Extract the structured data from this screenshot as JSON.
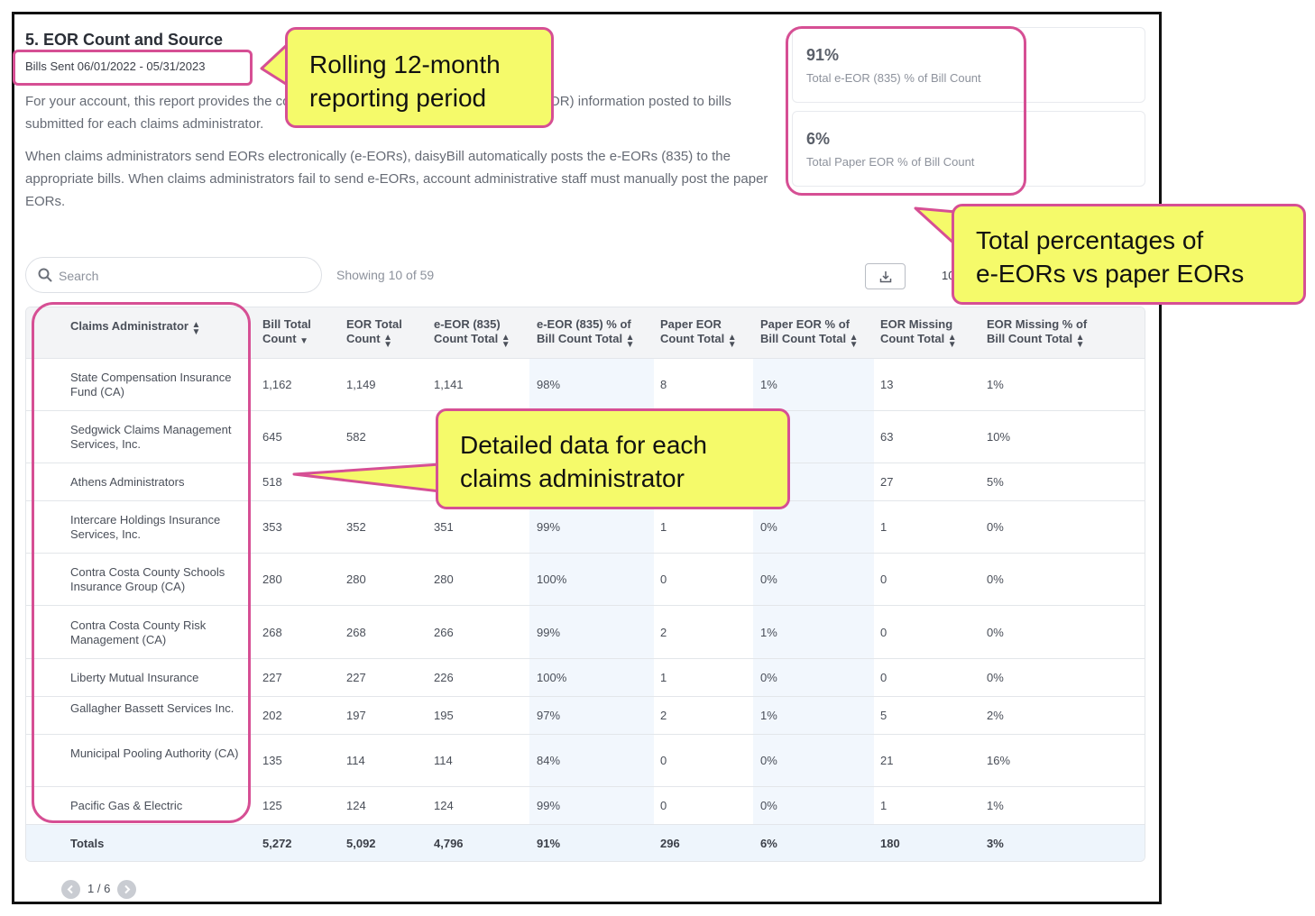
{
  "report": {
    "title": "5. EOR Count and Source",
    "subtitle": "Bills Sent 06/01/2022 - 05/31/2023",
    "para1": "For your account, this report provides the count and source of Explanation of Review (EOR) information posted to bills submitted for each claims administrator.",
    "para2": "When claims administrators send EORs electronically (e-EORs), daisyBill automatically posts the e-EORs (835) to the appropriate bills. When claims administrators fail to send e-EORs, account administrative staff must manually post the paper EORs."
  },
  "summary": {
    "eeor": {
      "pct": "91%",
      "label": "Total e-EOR (835) % of Bill Count"
    },
    "paper": {
      "pct": "6%",
      "label": "Total Paper EOR % of Bill Count"
    }
  },
  "toolbar": {
    "search_placeholder": "Search",
    "showing": "Showing 10 of 59",
    "download_icon": "download-icon",
    "per_page": "10"
  },
  "table": {
    "headers": [
      {
        "l1": "Claims Administrator",
        "l2": "",
        "sort": "both"
      },
      {
        "l1": "Bill Total",
        "l2": "Count",
        "sort": "down"
      },
      {
        "l1": "EOR Total",
        "l2": "Count",
        "sort": "both"
      },
      {
        "l1": "e-EOR (835)",
        "l2": "Count Total",
        "sort": "both"
      },
      {
        "l1": "e-EOR (835) % of",
        "l2": "Bill Count Total",
        "sort": "both"
      },
      {
        "l1": "Paper EOR",
        "l2": "Count Total",
        "sort": "both"
      },
      {
        "l1": "Paper EOR % of",
        "l2": "Bill Count Total",
        "sort": "both"
      },
      {
        "l1": "EOR Missing",
        "l2": "Count Total",
        "sort": "both"
      },
      {
        "l1": "EOR Missing % of",
        "l2": "Bill Count Total",
        "sort": "both"
      }
    ],
    "rows": [
      {
        "name": "State Compensation Insurance Fund (CA)",
        "vals": [
          "1,162",
          "1,149",
          "1,141",
          "98%",
          "8",
          "1%",
          "13",
          "1%"
        ]
      },
      {
        "name": "Sedgwick Claims Management Services, Inc.",
        "vals": [
          "645",
          "582",
          "",
          "",
          "",
          "",
          "63",
          "10%"
        ]
      },
      {
        "name": "Athens Administrators",
        "vals": [
          "518",
          "",
          "",
          "",
          "",
          "",
          "27",
          "5%"
        ]
      },
      {
        "name": "Intercare Holdings Insurance Services, Inc.",
        "vals": [
          "353",
          "352",
          "351",
          "99%",
          "1",
          "0%",
          "1",
          "0%"
        ]
      },
      {
        "name": "Contra Costa County Schools Insurance Group (CA)",
        "vals": [
          "280",
          "280",
          "280",
          "100%",
          "0",
          "0%",
          "0",
          "0%"
        ]
      },
      {
        "name": "Contra Costa County Risk Management (CA)",
        "vals": [
          "268",
          "268",
          "266",
          "99%",
          "2",
          "1%",
          "0",
          "0%"
        ]
      },
      {
        "name": "Liberty Mutual Insurance",
        "vals": [
          "227",
          "227",
          "226",
          "100%",
          "1",
          "0%",
          "0",
          "0%"
        ]
      },
      {
        "name": "Gallagher Bassett Services Inc.",
        "vals": [
          "202",
          "197",
          "195",
          "97%",
          "2",
          "1%",
          "5",
          "2%"
        ]
      },
      {
        "name": "Municipal Pooling Authority (CA)",
        "vals": [
          "135",
          "114",
          "114",
          "84%",
          "0",
          "0%",
          "21",
          "16%"
        ]
      },
      {
        "name": "Pacific Gas & Electric",
        "vals": [
          "125",
          "124",
          "124",
          "99%",
          "0",
          "0%",
          "1",
          "1%"
        ]
      }
    ],
    "totals": {
      "label": "Totals",
      "vals": [
        "5,272",
        "5,092",
        "4,796",
        "91%",
        "296",
        "6%",
        "180",
        "3%"
      ]
    }
  },
  "pagination": {
    "text": "1 / 6"
  },
  "callouts": {
    "period": [
      "Rolling 12-month",
      "reporting period"
    ],
    "totals": [
      "Total percentages of",
      "e-EORs vs paper EORs"
    ],
    "detail": [
      "Detailed data for each",
      "claims administrator"
    ]
  }
}
